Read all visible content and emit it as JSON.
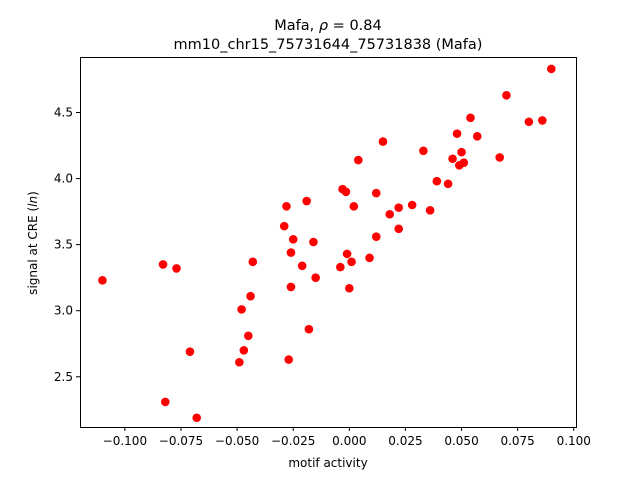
{
  "figure": {
    "title_prefix": "Mafa, ",
    "title_symbol": "ρ",
    "title_suffix": " = 0.84",
    "subtitle": "mm10_chr15_75731644_75731838 (Mafa)"
  },
  "chart_data": {
    "type": "scatter",
    "title": "Mafa, ρ = 0.84",
    "subtitle": "mm10_chr15_75731644_75731838 (Mafa)",
    "xlabel": "motif activity",
    "ylabel_prefix": "signal at CRE (",
    "ylabel_italic": "ln",
    "ylabel_suffix": ")",
    "xlim": [
      -0.12,
      0.101
    ],
    "ylim": [
      2.12,
      4.92
    ],
    "xticks": [
      -0.1,
      -0.075,
      -0.05,
      -0.025,
      0.0,
      0.025,
      0.05,
      0.075,
      0.1
    ],
    "xtick_labels": [
      "−0.100",
      "−0.075",
      "−0.050",
      "−0.025",
      "0.000",
      "0.025",
      "0.050",
      "0.075",
      "0.100"
    ],
    "yticks": [
      2.5,
      3.0,
      3.5,
      4.0,
      4.5
    ],
    "ytick_labels": [
      "2.5",
      "3.0",
      "3.5",
      "4.0",
      "4.5"
    ],
    "grid": false,
    "marker_color": "#ff0000",
    "points": [
      {
        "x": -0.11,
        "y": 3.23
      },
      {
        "x": -0.083,
        "y": 3.35
      },
      {
        "x": -0.082,
        "y": 2.31
      },
      {
        "x": -0.077,
        "y": 3.32
      },
      {
        "x": -0.071,
        "y": 2.69
      },
      {
        "x": -0.068,
        "y": 2.19
      },
      {
        "x": -0.049,
        "y": 2.61
      },
      {
        "x": -0.048,
        "y": 3.01
      },
      {
        "x": -0.047,
        "y": 2.7
      },
      {
        "x": -0.045,
        "y": 2.81
      },
      {
        "x": -0.044,
        "y": 3.11
      },
      {
        "x": -0.043,
        "y": 3.37
      },
      {
        "x": -0.029,
        "y": 3.64
      },
      {
        "x": -0.028,
        "y": 3.79
      },
      {
        "x": -0.027,
        "y": 2.63
      },
      {
        "x": -0.026,
        "y": 3.18
      },
      {
        "x": -0.026,
        "y": 3.44
      },
      {
        "x": -0.025,
        "y": 3.54
      },
      {
        "x": -0.021,
        "y": 3.34
      },
      {
        "x": -0.019,
        "y": 3.83
      },
      {
        "x": -0.018,
        "y": 2.86
      },
      {
        "x": -0.016,
        "y": 3.52
      },
      {
        "x": -0.015,
        "y": 3.25
      },
      {
        "x": -0.004,
        "y": 3.33
      },
      {
        "x": -0.003,
        "y": 3.92
      },
      {
        "x": -0.0015,
        "y": 3.9
      },
      {
        "x": -0.001,
        "y": 3.43
      },
      {
        "x": 0.0,
        "y": 3.17
      },
      {
        "x": 0.001,
        "y": 3.37
      },
      {
        "x": 0.002,
        "y": 3.79
      },
      {
        "x": 0.004,
        "y": 4.14
      },
      {
        "x": 0.009,
        "y": 3.4
      },
      {
        "x": 0.012,
        "y": 3.56
      },
      {
        "x": 0.012,
        "y": 3.89
      },
      {
        "x": 0.015,
        "y": 4.28
      },
      {
        "x": 0.018,
        "y": 3.73
      },
      {
        "x": 0.022,
        "y": 3.62
      },
      {
        "x": 0.022,
        "y": 3.78
      },
      {
        "x": 0.028,
        "y": 3.8
      },
      {
        "x": 0.033,
        "y": 4.21
      },
      {
        "x": 0.036,
        "y": 3.76
      },
      {
        "x": 0.039,
        "y": 3.98
      },
      {
        "x": 0.044,
        "y": 3.96
      },
      {
        "x": 0.046,
        "y": 4.15
      },
      {
        "x": 0.048,
        "y": 4.34
      },
      {
        "x": 0.049,
        "y": 4.1
      },
      {
        "x": 0.05,
        "y": 4.2
      },
      {
        "x": 0.051,
        "y": 4.12
      },
      {
        "x": 0.054,
        "y": 4.46
      },
      {
        "x": 0.057,
        "y": 4.32
      },
      {
        "x": 0.067,
        "y": 4.16
      },
      {
        "x": 0.07,
        "y": 4.63
      },
      {
        "x": 0.08,
        "y": 4.43
      },
      {
        "x": 0.086,
        "y": 4.44
      },
      {
        "x": 0.09,
        "y": 4.83
      }
    ]
  }
}
